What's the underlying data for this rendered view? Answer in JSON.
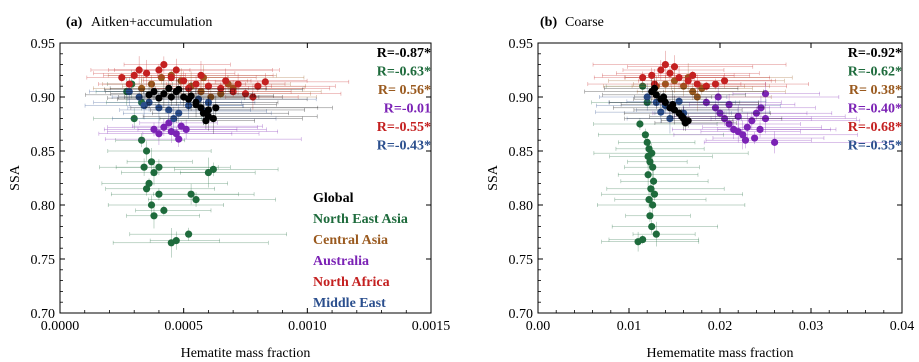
{
  "chart_data": [
    {
      "type": "scatter",
      "panel_label": "(a)",
      "title": "Aitken+accumulation",
      "xlabel": "Hematite mass fraction",
      "ylabel": "SSA",
      "xlim": [
        0.0,
        0.0015
      ],
      "ylim": [
        0.7,
        0.95
      ],
      "x_ticks": [
        "0.0000",
        "0.0005",
        "0.0010",
        "0.0015"
      ],
      "y_ticks": [
        "0.70",
        "0.75",
        "0.80",
        "0.85",
        "0.90",
        "0.95"
      ],
      "grid": false,
      "error_bars": "horizontal and vertical",
      "legend": {
        "position": "bottom-right",
        "entries": [
          "Global",
          "North East Asia",
          "Central Asia",
          "Australia",
          "North Africa",
          "Middle East"
        ]
      },
      "correlations": [
        "R=-0.87*",
        "R=-0.63*",
        "R= 0.56*",
        "R=-0.01",
        "R=-0.55*",
        "R=-0.43*"
      ],
      "series": [
        {
          "name": "Global",
          "color": "#000000",
          "points": [
            [
              0.00038,
              0.905
            ],
            [
              0.00042,
              0.903
            ],
            [
              0.00045,
              0.9
            ],
            [
              0.00047,
              0.905
            ],
            [
              0.0005,
              0.9
            ],
            [
              0.00052,
              0.898
            ],
            [
              0.00055,
              0.895
            ],
            [
              0.00057,
              0.89
            ],
            [
              0.00058,
              0.885
            ],
            [
              0.0006,
              0.882
            ],
            [
              0.00062,
              0.88
            ],
            [
              0.0006,
              0.888
            ],
            [
              0.00055,
              0.893
            ],
            [
              0.00048,
              0.907
            ],
            [
              0.00044,
              0.908
            ],
            [
              0.00036,
              0.902
            ],
            [
              0.0004,
              0.899
            ],
            [
              0.00063,
              0.89
            ],
            [
              0.00059,
              0.878
            ],
            [
              0.00053,
              0.901
            ]
          ]
        },
        {
          "name": "North East Asia",
          "color": "#1e6b3c",
          "points": [
            [
              0.0003,
              0.88
            ],
            [
              0.00033,
              0.86
            ],
            [
              0.00035,
              0.85
            ],
            [
              0.00037,
              0.84
            ],
            [
              0.00034,
              0.835
            ],
            [
              0.00038,
              0.83
            ],
            [
              0.00036,
              0.82
            ],
            [
              0.00035,
              0.815
            ],
            [
              0.0004,
              0.81
            ],
            [
              0.00037,
              0.8
            ],
            [
              0.00042,
              0.795
            ],
            [
              0.00045,
              0.765
            ],
            [
              0.00047,
              0.767
            ],
            [
              0.00052,
              0.773
            ],
            [
              0.00053,
              0.81
            ],
            [
              0.00055,
              0.805
            ],
            [
              0.0006,
              0.83
            ],
            [
              0.00062,
              0.833
            ],
            [
              0.0004,
              0.835
            ],
            [
              0.00038,
              0.79
            ],
            [
              0.00033,
              0.895
            ],
            [
              0.00029,
              0.912
            ],
            [
              0.00027,
              0.905
            ]
          ]
        },
        {
          "name": "Central Asia",
          "color": "#9a5a1f",
          "points": [
            [
              0.00033,
              0.908
            ],
            [
              0.00037,
              0.912
            ],
            [
              0.00041,
              0.918
            ],
            [
              0.00045,
              0.92
            ],
            [
              0.00049,
              0.915
            ],
            [
              0.00053,
              0.91
            ],
            [
              0.00057,
              0.905
            ],
            [
              0.00061,
              0.9
            ],
            [
              0.00065,
              0.903
            ],
            [
              0.0007,
              0.908
            ],
            [
              0.00068,
              0.912
            ],
            [
              0.00058,
              0.918
            ]
          ]
        },
        {
          "name": "Australia",
          "color": "#7b22b5",
          "points": [
            [
              0.00038,
              0.87
            ],
            [
              0.00042,
              0.872
            ],
            [
              0.00045,
              0.868
            ],
            [
              0.00047,
              0.866
            ],
            [
              0.00049,
              0.873
            ],
            [
              0.00044,
              0.876
            ],
            [
              0.0004,
              0.866
            ],
            [
              0.00048,
              0.861
            ],
            [
              0.00051,
              0.87
            ]
          ]
        },
        {
          "name": "North Africa",
          "color": "#c42020",
          "points": [
            [
              0.00025,
              0.918
            ],
            [
              0.0003,
              0.92
            ],
            [
              0.00035,
              0.922
            ],
            [
              0.0004,
              0.925
            ],
            [
              0.00045,
              0.918
            ],
            [
              0.0005,
              0.915
            ],
            [
              0.00055,
              0.912
            ],
            [
              0.0006,
              0.91
            ],
            [
              0.00065,
              0.908
            ],
            [
              0.0007,
              0.905
            ],
            [
              0.00075,
              0.903
            ],
            [
              0.0008,
              0.91
            ],
            [
              0.00083,
              0.914
            ],
            [
              0.00078,
              0.9
            ],
            [
              0.00067,
              0.915
            ],
            [
              0.00057,
              0.92
            ],
            [
              0.00047,
              0.925
            ],
            [
              0.00042,
              0.93
            ],
            [
              0.00032,
              0.925
            ],
            [
              0.00028,
              0.912
            ],
            [
              0.00052,
              0.908
            ],
            [
              0.00072,
              0.912
            ]
          ]
        },
        {
          "name": "Middle East",
          "color": "#2b4f8e",
          "points": [
            [
              0.00028,
              0.905
            ],
            [
              0.00032,
              0.9
            ],
            [
              0.00036,
              0.895
            ],
            [
              0.0004,
              0.89
            ],
            [
              0.00044,
              0.888
            ],
            [
              0.00048,
              0.885
            ],
            [
              0.00052,
              0.892
            ],
            [
              0.00056,
              0.898
            ],
            [
              0.0006,
              0.895
            ],
            [
              0.00046,
              0.88
            ],
            [
              0.00034,
              0.892
            ],
            [
              0.00058,
              0.887
            ]
          ]
        }
      ]
    },
    {
      "type": "scatter",
      "panel_label": "(b)",
      "title": "Coarse",
      "xlabel": "Hemematite mass fraction",
      "ylabel": "SSA",
      "xlim": [
        0.0,
        0.04
      ],
      "ylim": [
        0.7,
        0.95
      ],
      "x_ticks": [
        "0.00",
        "0.01",
        "0.02",
        "0.03",
        "0.04"
      ],
      "y_ticks": [
        "0.70",
        "0.75",
        "0.80",
        "0.85",
        "0.90",
        "0.95"
      ],
      "grid": false,
      "error_bars": "horizontal and vertical",
      "correlations": [
        "R=-0.92*",
        "R=-0.62*",
        "R= 0.38*",
        "R=-0.40*",
        "R=-0.68*",
        "R=-0.35*"
      ],
      "series": [
        {
          "name": "Global",
          "color": "#000000",
          "points": [
            [
              0.0125,
              0.905
            ],
            [
              0.013,
              0.902
            ],
            [
              0.0135,
              0.898
            ],
            [
              0.014,
              0.895
            ],
            [
              0.0145,
              0.89
            ],
            [
              0.015,
              0.888
            ],
            [
              0.0155,
              0.885
            ],
            [
              0.016,
              0.88
            ],
            [
              0.0165,
              0.878
            ],
            [
              0.0158,
              0.882
            ],
            [
              0.0138,
              0.9
            ],
            [
              0.0128,
              0.908
            ],
            [
              0.0148,
              0.893
            ],
            [
              0.0162,
              0.876
            ]
          ]
        },
        {
          "name": "North East Asia",
          "color": "#1e6b3c",
          "points": [
            [
              0.0112,
              0.875
            ],
            [
              0.0118,
              0.865
            ],
            [
              0.012,
              0.858
            ],
            [
              0.0122,
              0.852
            ],
            [
              0.0125,
              0.848
            ],
            [
              0.0123,
              0.84
            ],
            [
              0.0126,
              0.835
            ],
            [
              0.0121,
              0.828
            ],
            [
              0.0127,
              0.822
            ],
            [
              0.0124,
              0.815
            ],
            [
              0.0128,
              0.81
            ],
            [
              0.0122,
              0.805
            ],
            [
              0.0126,
              0.8
            ],
            [
              0.0123,
              0.79
            ],
            [
              0.0125,
              0.78
            ],
            [
              0.011,
              0.766
            ],
            [
              0.0115,
              0.768
            ],
            [
              0.013,
              0.773
            ],
            [
              0.0121,
              0.845
            ],
            [
              0.012,
              0.895
            ],
            [
              0.0115,
              0.91
            ]
          ]
        },
        {
          "name": "Central Asia",
          "color": "#9a5a1f",
          "points": [
            [
              0.013,
              0.91
            ],
            [
              0.014,
              0.912
            ],
            [
              0.015,
              0.915
            ],
            [
              0.016,
              0.91
            ],
            [
              0.017,
              0.905
            ],
            [
              0.018,
              0.908
            ],
            [
              0.0175,
              0.9
            ],
            [
              0.0165,
              0.918
            ]
          ]
        },
        {
          "name": "Australia",
          "color": "#7b22b5",
          "points": [
            [
              0.0185,
              0.895
            ],
            [
              0.0195,
              0.89
            ],
            [
              0.02,
              0.885
            ],
            [
              0.0205,
              0.88
            ],
            [
              0.021,
              0.875
            ],
            [
              0.0215,
              0.87
            ],
            [
              0.022,
              0.868
            ],
            [
              0.0225,
              0.865
            ],
            [
              0.023,
              0.872
            ],
            [
              0.0235,
              0.878
            ],
            [
              0.024,
              0.885
            ],
            [
              0.0245,
              0.89
            ],
            [
              0.025,
              0.88
            ],
            [
              0.0228,
              0.86
            ],
            [
              0.0238,
              0.862
            ],
            [
              0.026,
              0.858
            ],
            [
              0.022,
              0.882
            ],
            [
              0.021,
              0.893
            ],
            [
              0.025,
              0.903
            ],
            [
              0.0198,
              0.9
            ],
            [
              0.0244,
              0.87
            ]
          ]
        },
        {
          "name": "North Africa",
          "color": "#c42020",
          "points": [
            [
              0.0115,
              0.918
            ],
            [
              0.0125,
              0.92
            ],
            [
              0.0135,
              0.925
            ],
            [
              0.0145,
              0.922
            ],
            [
              0.0155,
              0.918
            ],
            [
              0.0165,
              0.915
            ],
            [
              0.0175,
              0.912
            ],
            [
              0.0185,
              0.91
            ],
            [
              0.0195,
              0.912
            ],
            [
              0.0205,
              0.915
            ],
            [
              0.015,
              0.928
            ],
            [
              0.014,
              0.93
            ],
            [
              0.017,
              0.92
            ],
            [
              0.0128,
              0.912
            ]
          ]
        },
        {
          "name": "Middle East",
          "color": "#2b4f8e",
          "points": [
            [
              0.012,
              0.9
            ],
            [
              0.013,
              0.895
            ],
            [
              0.014,
              0.892
            ],
            [
              0.015,
              0.888
            ],
            [
              0.016,
              0.885
            ],
            [
              0.0145,
              0.88
            ],
            [
              0.0135,
              0.886
            ],
            [
              0.0155,
              0.896
            ]
          ]
        }
      ]
    }
  ]
}
